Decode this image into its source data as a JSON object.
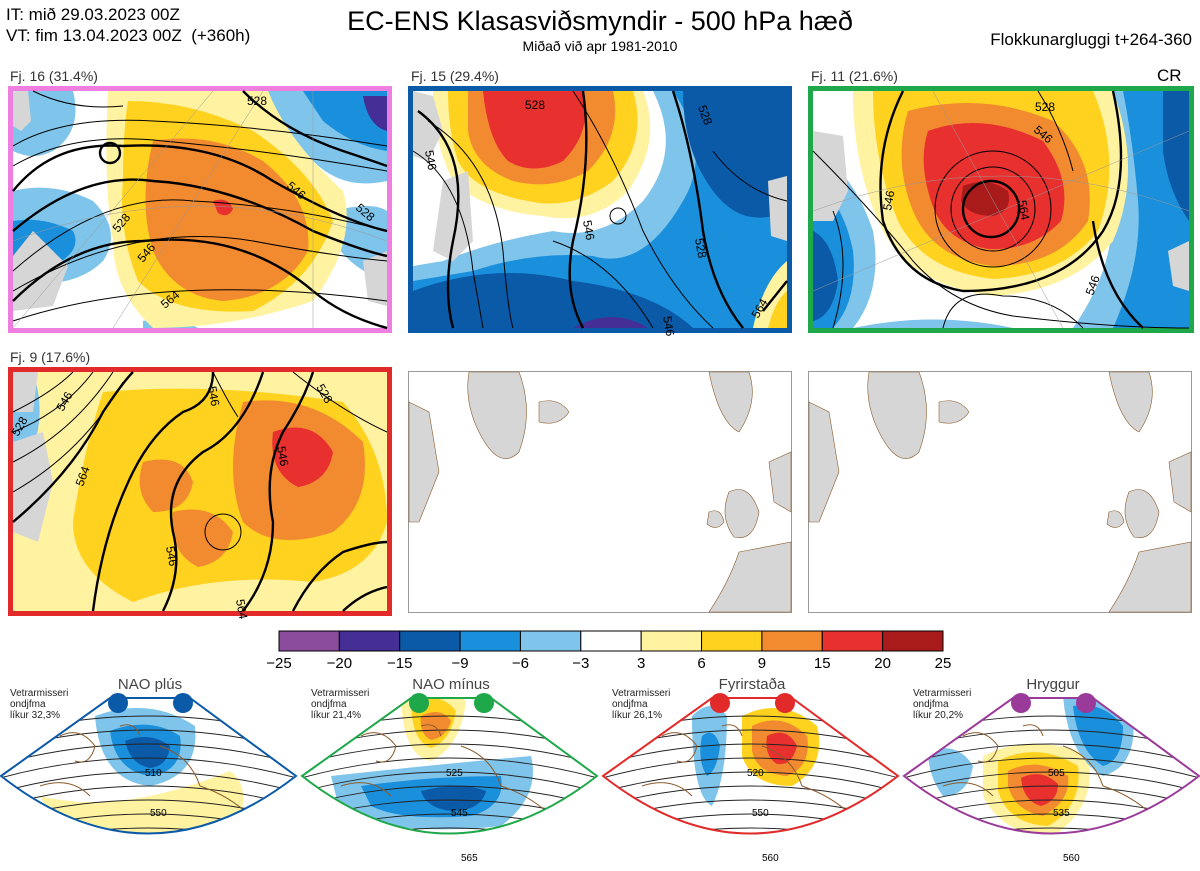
{
  "header": {
    "it_line": "IT: mið 29.03.2023 00Z",
    "vt_line": "VT: fim 13.04.2023 00Z  (+360h)",
    "title": "EC-ENS Klasasviðsmyndir - 500 hPa hæð",
    "subtitle": "Miðað við apr 1981-2010",
    "window": "Flokkunargluggi t+264-360"
  },
  "clusters": [
    {
      "label": "Fj. 16 (31.4%)",
      "count": 16,
      "percent": 31.4,
      "border_color": "#ee7ee0",
      "tag": ""
    },
    {
      "label": "Fj. 15 (29.4%)",
      "count": 15,
      "percent": 29.4,
      "border_color": "#0b5aa8",
      "tag": ""
    },
    {
      "label": "Fj. 11 (21.6%)",
      "count": 11,
      "percent": 21.6,
      "border_color": "#1fa84a",
      "tag": "CR"
    },
    {
      "label": "Fj. 9 (17.6%)",
      "count": 9,
      "percent": 17.6,
      "border_color": "#e22a2a",
      "tag": ""
    }
  ],
  "contour_labels": {
    "panel1": [
      "528",
      "546",
      "528",
      "546",
      "564",
      "528"
    ],
    "panel2": [
      "528",
      "528",
      "546",
      "546",
      "528",
      "546",
      "564"
    ],
    "panel3": [
      "528",
      "546",
      "546",
      "564",
      "546"
    ],
    "panel4": [
      "528",
      "546",
      "546",
      "564",
      "546",
      "546",
      "528",
      "564"
    ]
  },
  "chart_data": {
    "type": "heatmap",
    "title": "EC-ENS Klasasviðsmyndir - 500 hPa hæð",
    "subtitle": "Miðað við apr 1981-2010",
    "colorbar": {
      "ticks": [
        "−25",
        "−20",
        "−15",
        "−9",
        "−6",
        "−3",
        "3",
        "6",
        "9",
        "15",
        "20",
        "25"
      ],
      "bounds": [
        -25,
        -20,
        -15,
        -9,
        -6,
        -3,
        3,
        6,
        9,
        15,
        20,
        25
      ],
      "colors": [
        "#8c4c9e",
        "#452e96",
        "#0b5aa8",
        "#1a8fdb",
        "#7fc4ea",
        "#ffffff",
        "#fff2a0",
        "#ffd21f",
        "#f28a30",
        "#e8302f",
        "#a91b1b"
      ]
    },
    "series": [
      {
        "name": "Fj. 16",
        "members": 16,
        "percent": 31.4
      },
      {
        "name": "Fj. 15",
        "members": 15,
        "percent": 29.4
      },
      {
        "name": "Fj. 11",
        "members": 11,
        "percent": 21.6
      },
      {
        "name": "Fj. 9",
        "members": 9,
        "percent": 17.6
      }
    ]
  },
  "regimes": [
    {
      "name": "NAO plús",
      "note": [
        "Vetrarmisseri",
        "ondjfma",
        "líkur 32,3%"
      ],
      "color": "#0b5aa8",
      "probability": 32.3,
      "contours": [
        "510",
        "550"
      ]
    },
    {
      "name": "NAO mínus",
      "note": [
        "Vetrarmisseri",
        "ondjfma",
        "líkur 21,4%"
      ],
      "color": "#1fa84a",
      "probability": 21.4,
      "contours": [
        "525",
        "545",
        "565"
      ]
    },
    {
      "name": "Fyrirstaða",
      "note": [
        "Vetrarmisseri",
        "ondjfma",
        "líkur 26,1%"
      ],
      "color": "#e22a2a",
      "probability": 26.1,
      "contours": [
        "520",
        "550",
        "560"
      ]
    },
    {
      "name": "Hryggur",
      "note": [
        "Vetrarmisseri",
        "ondjfma",
        "líkur 20,2%"
      ],
      "color": "#9a3a9a",
      "probability": 20.2,
      "contours": [
        "505",
        "535",
        "560"
      ]
    }
  ]
}
